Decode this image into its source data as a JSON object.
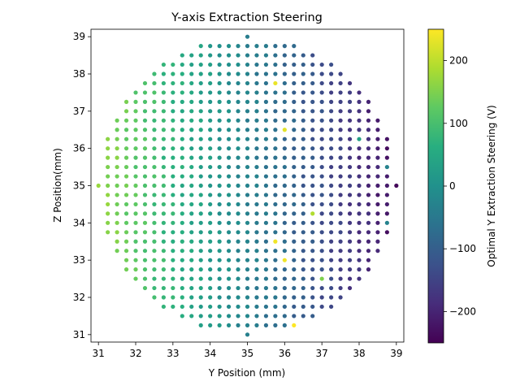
{
  "chart_data": {
    "type": "scatter",
    "title": "Y-axis Extraction Steering",
    "xlabel": "Y Position (mm)",
    "ylabel": "Z Position(mm)",
    "xlim": [
      30.8,
      39.2
    ],
    "ylim": [
      30.8,
      39.2
    ],
    "x_ticks": [
      31,
      32,
      33,
      34,
      35,
      36,
      37,
      38,
      39
    ],
    "y_ticks": [
      31,
      32,
      33,
      34,
      35,
      36,
      37,
      38,
      39
    ],
    "colorbar": {
      "label": "Optimal Y Extraction Steering (V)",
      "range": [
        -250,
        250
      ],
      "ticks": [
        -200,
        -100,
        0,
        100,
        200
      ],
      "colormap": "viridis"
    },
    "grid": false,
    "grid_spacing_mm": 0.25,
    "center": [
      35,
      35
    ],
    "radius_mm": 4,
    "value_model": "approx. linear gradient from ~170 V at Y=31 mm to ~-230 V at Y=39 mm",
    "outliers": [
      {
        "y": 35.75,
        "z": 37.75,
        "value": 235
      },
      {
        "y": 36.0,
        "z": 36.5,
        "value": 230
      },
      {
        "y": 38.0,
        "z": 36.25,
        "value": 30
      },
      {
        "y": 36.75,
        "z": 34.25,
        "value": 190
      },
      {
        "y": 35.75,
        "z": 33.5,
        "value": 240
      },
      {
        "y": 36.0,
        "z": 33.0,
        "value": 240
      },
      {
        "y": 37.0,
        "z": 32.5,
        "value": 150
      },
      {
        "y": 36.25,
        "z": 31.25,
        "value": 250
      },
      {
        "y": 38.75,
        "z": 35.5,
        "value": -30
      },
      {
        "y": 38.75,
        "z": 34.0,
        "value": -30
      },
      {
        "y": 31.0,
        "z": 35.0,
        "value": 170
      }
    ]
  }
}
